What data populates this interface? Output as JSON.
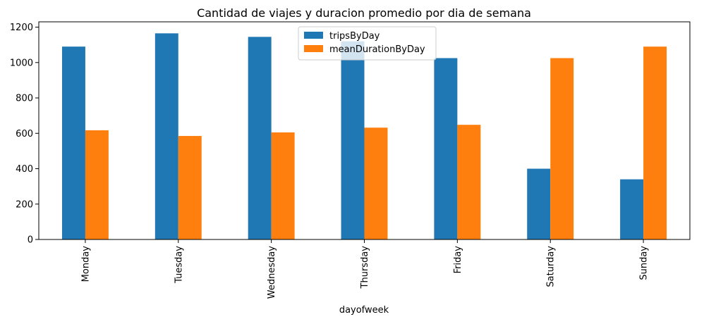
{
  "chart_data": {
    "type": "bar",
    "title": "Cantidad de viajes y duracion promedio por dia de semana",
    "xlabel": "dayofweek",
    "ylabel": "",
    "categories": [
      "Monday",
      "Tuesday",
      "Wednesday",
      "Thursday",
      "Friday",
      "Saturday",
      "Sunday"
    ],
    "series": [
      {
        "name": "tripsByDay",
        "color": "#1f77b4",
        "values": [
          1090,
          1165,
          1145,
          1120,
          1025,
          400,
          340
        ]
      },
      {
        "name": "meanDurationByDay",
        "color": "#ff7f0e",
        "values": [
          617,
          585,
          605,
          632,
          648,
          1025,
          1090
        ]
      }
    ],
    "ylim": [
      0,
      1230
    ],
    "yticks": [
      0,
      200,
      400,
      600,
      800,
      1000,
      1200
    ],
    "grid": false,
    "legend_position": "top-center"
  }
}
